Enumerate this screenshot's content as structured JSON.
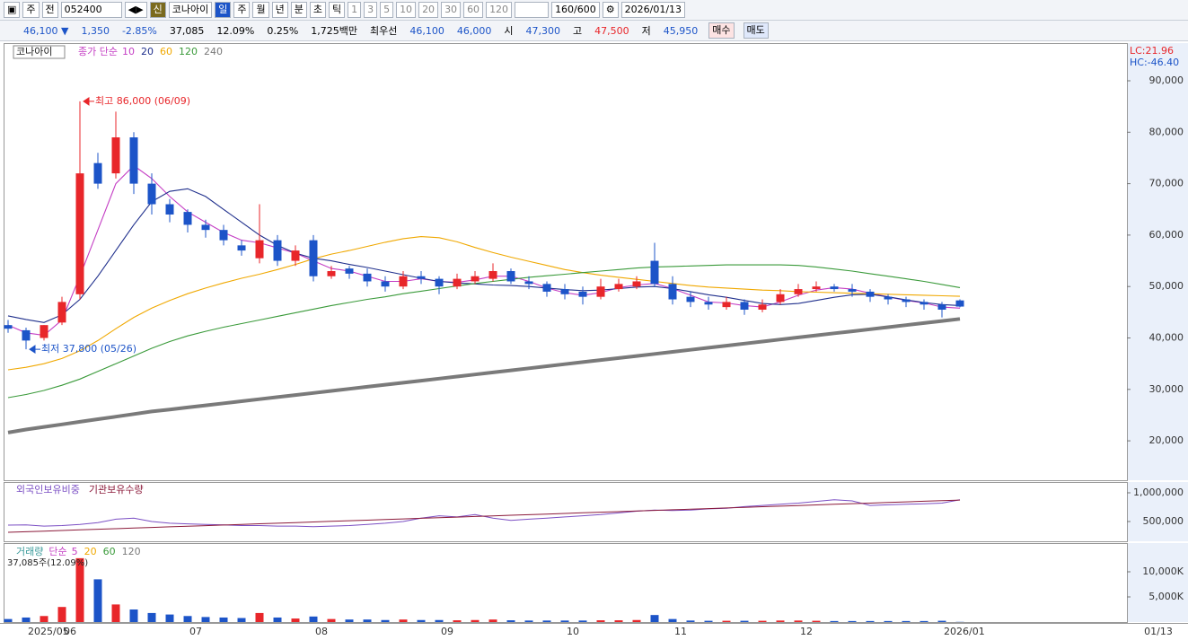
{
  "toolbar": {
    "items": [
      "주",
      "전",
      "052400",
      "코나아이",
      "일",
      "주",
      "월",
      "년",
      "분",
      "초",
      "틱",
      "1",
      "3",
      "5",
      "10",
      "20",
      "30",
      "60",
      "120",
      "160/600",
      "2026/01/13"
    ]
  },
  "quote": {
    "price": "46,100 ▼",
    "change": "1,350",
    "rate": "-2.85%",
    "volume": "37,085",
    "vol_rate": "12.09%",
    "turnover": "0.25%",
    "amount": "1,725백만",
    "best_label": "최우선",
    "ask": "46,100",
    "bid": "46,000",
    "open_label": "시",
    "open": "47,300",
    "high_label": "고",
    "high": "47,500",
    "low_label": "저",
    "low": "45,950",
    "buy": "매수",
    "sell": "매도"
  },
  "chart_data": [
    {
      "type": "candlestick",
      "title": "코나아이",
      "ma_label": "종가 단순",
      "corner": [
        "LC:21.96",
        "HC:-46.40"
      ],
      "annotations": [
        "최고 86,000 (06/09)",
        "최저 37,800 (05/26)"
      ],
      "up_color": "#e8262a",
      "down_color": "#1c54c8",
      "categories": [
        null,
        "2025/05",
        null,
        "06",
        null,
        null,
        null,
        null,
        null,
        null,
        "07",
        null,
        null,
        null,
        null,
        null,
        null,
        "08",
        null,
        null,
        null,
        null,
        null,
        null,
        "09",
        null,
        null,
        null,
        null,
        null,
        null,
        "10",
        null,
        null,
        null,
        null,
        null,
        "11",
        null,
        null,
        null,
        null,
        null,
        null,
        "12",
        null,
        null,
        null,
        null,
        null,
        null,
        null,
        "2026/01",
        null
      ],
      "last_label": "01/13",
      "open": [
        42500,
        41500,
        40000,
        43000,
        48500,
        74000,
        72000,
        79000,
        70000,
        66000,
        64500,
        62000,
        61000,
        58000,
        55500,
        59000,
        55000,
        59000,
        52000,
        53500,
        52500,
        51000,
        50000,
        52000,
        51500,
        50000,
        51000,
        51500,
        53000,
        51000,
        50500,
        49500,
        49000,
        48000,
        49500,
        50000,
        55000,
        50500,
        48000,
        47000,
        46000,
        47000,
        45500,
        47000,
        48500,
        49500,
        50000,
        49500,
        49000,
        48000,
        47500,
        47000,
        46500,
        47300
      ],
      "high": [
        43500,
        42000,
        42500,
        48000,
        86000,
        76000,
        84000,
        80000,
        72000,
        67000,
        65000,
        63000,
        62000,
        59000,
        66000,
        60000,
        58000,
        60000,
        54000,
        54000,
        53500,
        52000,
        53000,
        53000,
        52000,
        52500,
        53000,
        54500,
        53500,
        52000,
        51000,
        50500,
        50000,
        51500,
        51500,
        52000,
        58500,
        52000,
        49000,
        48000,
        48000,
        47500,
        47500,
        49500,
        50500,
        51000,
        50500,
        50500,
        49500,
        48500,
        48000,
        47500,
        47000,
        47500
      ],
      "low": [
        41000,
        37800,
        39500,
        42500,
        47500,
        69000,
        71000,
        68000,
        64000,
        62500,
        60500,
        59500,
        58000,
        56000,
        54500,
        54000,
        54000,
        51000,
        51500,
        51500,
        50000,
        49000,
        49500,
        50500,
        48500,
        49500,
        50500,
        51000,
        50500,
        49500,
        48000,
        47500,
        46500,
        47500,
        49000,
        49500,
        50000,
        46500,
        46000,
        45500,
        45500,
        44500,
        45000,
        46500,
        48000,
        49000,
        49000,
        48000,
        47000,
        46500,
        46000,
        45500,
        44000,
        45950
      ],
      "close": [
        41800,
        39500,
        42500,
        47000,
        72000,
        70000,
        79000,
        70000,
        66000,
        64000,
        62000,
        61000,
        59000,
        57000,
        59000,
        55000,
        57000,
        52000,
        53000,
        52500,
        51000,
        50000,
        52000,
        51500,
        50000,
        51500,
        52000,
        53000,
        51000,
        50500,
        49000,
        48500,
        48000,
        50000,
        50500,
        51000,
        50500,
        47500,
        47000,
        46500,
        47000,
        45500,
        46500,
        48500,
        49500,
        50000,
        49500,
        49000,
        48000,
        47500,
        47000,
        46500,
        45500,
        46100
      ],
      "series": [
        {
          "name": "10",
          "color": "#c43ec4",
          "values": [
            42500,
            41000,
            40500,
            43500,
            52000,
            61000,
            70000,
            73500,
            71000,
            67500,
            64500,
            62500,
            60500,
            59000,
            58500,
            57500,
            56500,
            55000,
            53500,
            53000,
            52000,
            51000,
            51000,
            51500,
            51000,
            50800,
            51300,
            52000,
            52000,
            51000,
            49700,
            48800,
            48300,
            48800,
            49800,
            50300,
            50600,
            49600,
            48300,
            47000,
            46800,
            46300,
            46000,
            47000,
            48300,
            49300,
            49800,
            49500,
            48700,
            48000,
            47300,
            46800,
            46000,
            45800
          ]
        },
        {
          "name": "20",
          "color": "#1f2f8c",
          "values": [
            44300,
            43600,
            43000,
            44500,
            47500,
            52000,
            57000,
            62000,
            66500,
            68500,
            69000,
            67500,
            65000,
            62500,
            60000,
            58000,
            56500,
            55500,
            55000,
            54300,
            53700,
            53000,
            52300,
            51600,
            51000,
            50700,
            50500,
            50300,
            50200,
            50000,
            49700,
            49400,
            49200,
            49300,
            49600,
            49900,
            50000,
            49600,
            49000,
            48400,
            47900,
            47300,
            46700,
            46500,
            46700,
            47300,
            47900,
            48400,
            48500,
            48000,
            47400,
            46900,
            46500,
            46300
          ]
        },
        {
          "name": "60",
          "color": "#f0a800",
          "values": [
            33800,
            34300,
            35000,
            36000,
            37500,
            39500,
            41800,
            44000,
            45800,
            47300,
            48600,
            49700,
            50700,
            51600,
            52400,
            53300,
            54300,
            55400,
            56300,
            57000,
            57800,
            58600,
            59300,
            59700,
            59500,
            58700,
            57600,
            56600,
            55700,
            54900,
            54100,
            53300,
            52700,
            52200,
            51800,
            51400,
            51000,
            50600,
            50200,
            49900,
            49700,
            49500,
            49300,
            49200,
            49000,
            48900,
            48800,
            48700,
            48600,
            48500,
            48400,
            48300,
            48200,
            48100
          ]
        },
        {
          "name": "120",
          "color": "#3a9a3a",
          "values": [
            28400,
            29000,
            29800,
            30800,
            32000,
            33500,
            35000,
            36500,
            38000,
            39300,
            40400,
            41300,
            42100,
            42800,
            43500,
            44200,
            44900,
            45600,
            46300,
            46900,
            47500,
            48000,
            48600,
            49100,
            49600,
            50100,
            50600,
            51000,
            51400,
            51800,
            52100,
            52400,
            52700,
            53000,
            53300,
            53600,
            53800,
            53900,
            54000,
            54100,
            54200,
            54200,
            54200,
            54200,
            54100,
            53800,
            53400,
            53000,
            52500,
            52000,
            51500,
            51000,
            50400,
            49800
          ]
        },
        {
          "name": "240",
          "color": "#7a7a7a",
          "values": [
            21600,
            22200,
            22700,
            23200,
            23700,
            24200,
            24700,
            25200,
            25700,
            26100,
            26500,
            26900,
            27300,
            27700,
            28100,
            28500,
            28900,
            29300,
            29700,
            30100,
            30500,
            30900,
            31300,
            31700,
            32100,
            32500,
            32900,
            33300,
            33700,
            34100,
            34500,
            34900,
            35300,
            35700,
            36100,
            36500,
            36900,
            37300,
            37700,
            38100,
            38500,
            38900,
            39300,
            39700,
            40100,
            40500,
            40900,
            41300,
            41700,
            42100,
            42500,
            42900,
            43300,
            43700
          ]
        }
      ],
      "ylim": [
        12340,
        97330
      ],
      "yticks": [
        {
          "value": 20000,
          "label": "20,000"
        },
        {
          "value": 30000,
          "label": "30,000"
        },
        {
          "value": 40000,
          "label": "40,000"
        },
        {
          "value": 50000,
          "label": "50,000"
        },
        {
          "value": 60000,
          "label": "60,000"
        },
        {
          "value": 70000,
          "label": "70,000"
        },
        {
          "value": 80000,
          "label": "80,000"
        },
        {
          "value": 90000,
          "label": "90,000"
        }
      ]
    },
    {
      "type": "line",
      "ylim": [
        156250,
        1187500
      ],
      "yticks": [
        {
          "value": 500000,
          "label": "500,000"
        },
        {
          "value": 1000000,
          "label": "1,000,000"
        }
      ],
      "series": [
        {
          "name": "외국인보유비중",
          "color": "#7b4fc4",
          "values": [
            437000,
            440000,
            420000,
            430000,
            450000,
            480000,
            540000,
            560000,
            500000,
            470000,
            460000,
            450000,
            440000,
            430000,
            430000,
            420000,
            420000,
            410000,
            420000,
            430000,
            450000,
            470000,
            500000,
            560000,
            600000,
            580000,
            620000,
            560000,
            520000,
            540000,
            560000,
            580000,
            600000,
            620000,
            650000,
            680000,
            700000,
            690000,
            700000,
            720000,
            730000,
            760000,
            780000,
            800000,
            820000,
            850000,
            880000,
            860000,
            780000,
            790000,
            800000,
            810000,
            820000,
            880000
          ]
        },
        {
          "name": "기관보유수량",
          "color": "#8b1a3a",
          "values": [
            312000,
            322600,
            333200,
            343800,
            354400,
            365000,
            375600,
            386200,
            396800,
            407400,
            418000,
            428600,
            439200,
            449800,
            460400,
            471000,
            481600,
            492200,
            502800,
            513400,
            524000,
            534600,
            545200,
            555800,
            566400,
            577000,
            587600,
            598200,
            608800,
            619400,
            630000,
            640600,
            651200,
            661800,
            672400,
            683000,
            693600,
            704200,
            714800,
            725400,
            736000,
            746600,
            757200,
            767800,
            778400,
            789000,
            799600,
            810200,
            820800,
            831400,
            842000,
            852600,
            863200,
            873800
          ]
        }
      ]
    },
    {
      "type": "bar",
      "title": "거래량",
      "ma_label": "단순",
      "note": "37,085주(12.09%)",
      "ma_periods": [
        {
          "name": "5",
          "color": "#c43ec4"
        },
        {
          "name": "20",
          "color": "#f0a800"
        },
        {
          "name": "60",
          "color": "#3a9a3a"
        },
        {
          "name": "120",
          "color": "#7a7a7a"
        }
      ],
      "values": [
        600,
        900,
        1200,
        3000,
        12700,
        8500,
        3500,
        2500,
        1800,
        1500,
        1200,
        1000,
        900,
        800,
        1800,
        900,
        700,
        1100,
        600,
        500,
        500,
        400,
        500,
        400,
        400,
        350,
        400,
        500,
        350,
        300,
        300,
        300,
        300,
        350,
        350,
        400,
        1400,
        600,
        300,
        250,
        250,
        250,
        250,
        300,
        300,
        250,
        200,
        200,
        200,
        200,
        200,
        200,
        250,
        37.085
      ],
      "ylim": [
        0,
        15714
      ],
      "yticks": [
        {
          "value": 5000,
          "label": "5,000K"
        },
        {
          "value": 10000,
          "label": "10,000K"
        }
      ]
    }
  ]
}
